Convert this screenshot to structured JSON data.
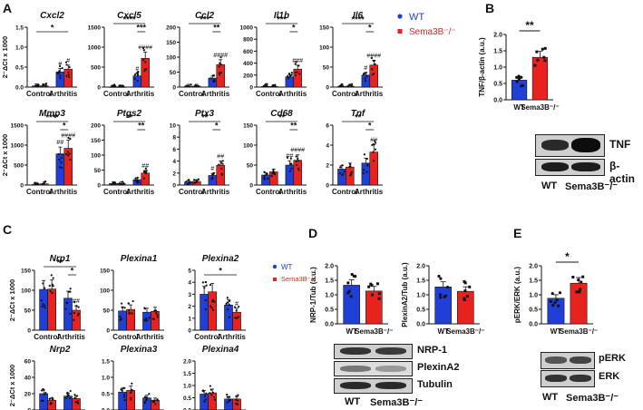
{
  "panels": {
    "A": "A",
    "B": "B",
    "C": "C",
    "D": "D",
    "E": "E"
  },
  "colors": {
    "wt": "#1f3fd6",
    "sema": "#e8231f",
    "wt_label": "#1f3fd6",
    "sema_label": "#e8231f"
  },
  "legend_A": {
    "wt": "WT",
    "sema": "Sema3B⁻/⁻"
  },
  "legend_C": {
    "wt": "WT",
    "sema": "Sema3B⁻/⁻"
  },
  "chart_data": [
    {
      "id": "Cxcl2",
      "type": "bar",
      "title": "Cxcl2",
      "ylabel": "2⁻ΔCt x 1000",
      "categories": [
        "Control",
        "Arthritis"
      ],
      "ylim": [
        0,
        1.5
      ],
      "yticks": [
        "0.0",
        "0.5",
        "1.0",
        "1.5"
      ],
      "series": [
        {
          "name": "WT",
          "values": [
            0.03,
            0.38
          ]
        },
        {
          "name": "Sema3B⁻/⁻",
          "values": [
            0.03,
            0.45
          ]
        }
      ],
      "sig": [
        {
          "text": "*",
          "from": 0,
          "to": 3,
          "level": 1
        }
      ],
      "marks": [
        [
          "",
          ""
        ],
        [
          "#",
          "#"
        ]
      ]
    },
    {
      "id": "Cxcl5",
      "type": "bar",
      "title": "Cxcl5",
      "categories": [
        "Control",
        "Arthritis"
      ],
      "ylim": [
        0,
        1500
      ],
      "yticks": [
        "0",
        "500",
        "1000",
        "1500"
      ],
      "series": [
        {
          "name": "WT",
          "values": [
            5,
            280
          ]
        },
        {
          "name": "Sema3B⁻/⁻",
          "values": [
            5,
            720
          ]
        }
      ],
      "sig": [
        {
          "text": "***",
          "from": 2,
          "to": 3,
          "level": 1
        },
        {
          "text": "****",
          "from": 0,
          "to": 3,
          "level": 2
        }
      ],
      "marks": [
        [
          "",
          ""
        ],
        [
          "#",
          "####"
        ]
      ]
    },
    {
      "id": "Ccl2",
      "type": "bar",
      "title": "Ccl2",
      "categories": [
        "Control",
        "Arthritis"
      ],
      "ylim": [
        0,
        200
      ],
      "yticks": [
        "0",
        "50",
        "100",
        "150",
        "200"
      ],
      "series": [
        {
          "name": "WT",
          "values": [
            3,
            30
          ]
        },
        {
          "name": "Sema3B⁻/⁻",
          "values": [
            3,
            75
          ]
        }
      ],
      "sig": [
        {
          "text": "**",
          "from": 2,
          "to": 3,
          "level": 1
        },
        {
          "text": "***",
          "from": 0,
          "to": 3,
          "level": 2
        }
      ],
      "marks": [
        [
          "",
          ""
        ],
        [
          "",
          "####"
        ]
      ]
    },
    {
      "id": "Il1b",
      "type": "bar",
      "title": "Il1b",
      "categories": [
        "Control",
        "Arthritis"
      ],
      "ylim": [
        0,
        1000
      ],
      "yticks": [
        "0",
        "200",
        "400",
        "600",
        "800",
        "1000"
      ],
      "series": [
        {
          "name": "WT",
          "values": [
            10,
            170
          ]
        },
        {
          "name": "Sema3B⁻/⁻",
          "values": [
            10,
            300
          ]
        }
      ],
      "sig": [
        {
          "text": "*",
          "from": 2,
          "to": 3,
          "level": 1
        },
        {
          "text": "***",
          "from": 0,
          "to": 3,
          "level": 2
        }
      ],
      "marks": [
        [
          "",
          ""
        ],
        [
          "",
          "###"
        ]
      ]
    },
    {
      "id": "Il6",
      "type": "bar",
      "title": "Il6",
      "categories": [
        "Control",
        "Arthritis"
      ],
      "ylim": [
        0,
        150
      ],
      "yticks": [
        "0",
        "50",
        "100",
        "150"
      ],
      "series": [
        {
          "name": "WT",
          "values": [
            2,
            30
          ]
        },
        {
          "name": "Sema3B⁻/⁻",
          "values": [
            2,
            55
          ]
        }
      ],
      "sig": [
        {
          "text": "*",
          "from": 2,
          "to": 3,
          "level": 1
        },
        {
          "text": "****",
          "from": 0,
          "to": 3,
          "level": 2
        }
      ],
      "marks": [
        [
          "",
          ""
        ],
        [
          "#",
          "####"
        ]
      ]
    },
    {
      "id": "Mmp3",
      "type": "bar",
      "title": "Mmp3",
      "ylabel": "2⁻ΔCt x 1000",
      "categories": [
        "Control",
        "Arthritis"
      ],
      "ylim": [
        0,
        1500
      ],
      "yticks": [
        "0",
        "500",
        "1000",
        "1500"
      ],
      "series": [
        {
          "name": "WT",
          "values": [
            20,
            780
          ]
        },
        {
          "name": "Sema3B⁻/⁻",
          "values": [
            30,
            920
          ]
        }
      ],
      "sig": [
        {
          "text": "*",
          "from": 2,
          "to": 3,
          "level": 1
        },
        {
          "text": "****",
          "from": 0,
          "to": 3,
          "level": 2
        }
      ],
      "marks": [
        [
          "",
          ""
        ],
        [
          "##",
          "####"
        ]
      ]
    },
    {
      "id": "Ptgs2",
      "type": "bar",
      "title": "Ptgs2",
      "categories": [
        "Control",
        "Arthritis"
      ],
      "ylim": [
        0,
        200
      ],
      "yticks": [
        "0",
        "50",
        "100",
        "150",
        "200"
      ],
      "series": [
        {
          "name": "WT",
          "values": [
            5,
            18
          ]
        },
        {
          "name": "Sema3B⁻/⁻",
          "values": [
            5,
            40
          ]
        }
      ],
      "sig": [
        {
          "text": "**",
          "from": 2,
          "to": 3,
          "level": 1
        },
        {
          "text": "**",
          "from": 0,
          "to": 3,
          "level": 2
        }
      ],
      "marks": [
        [
          "",
          ""
        ],
        [
          "",
          "##"
        ]
      ]
    },
    {
      "id": "Ptx3",
      "type": "bar",
      "title": "Ptx3",
      "categories": [
        "Control",
        "Arthritis"
      ],
      "ylim": [
        0,
        10
      ],
      "yticks": [
        "0",
        "2",
        "4",
        "6",
        "8",
        "10"
      ],
      "series": [
        {
          "name": "WT",
          "values": [
            0.5,
            1.6
          ]
        },
        {
          "name": "Sema3B⁻/⁻",
          "values": [
            0.6,
            3.3
          ]
        }
      ],
      "sig": [
        {
          "text": "*",
          "from": 2,
          "to": 3,
          "level": 1
        },
        {
          "text": "**",
          "from": 0,
          "to": 3,
          "level": 2
        }
      ],
      "marks": [
        [
          "",
          ""
        ],
        [
          "#",
          "##"
        ]
      ]
    },
    {
      "id": "Cd68",
      "type": "bar",
      "title": "Cd68",
      "categories": [
        "Control",
        "Arthritis"
      ],
      "ylim": [
        0,
        150
      ],
      "yticks": [
        "0",
        "50",
        "100",
        "150"
      ],
      "series": [
        {
          "name": "WT",
          "values": [
            25,
            50
          ]
        },
        {
          "name": "Sema3B⁻/⁻",
          "values": [
            33,
            62
          ]
        }
      ],
      "sig": [
        {
          "text": "**",
          "from": 2,
          "to": 3,
          "level": 1
        },
        {
          "text": "**",
          "from": 0,
          "to": 3,
          "level": 2
        }
      ],
      "marks": [
        [
          "",
          ""
        ],
        [
          "##",
          "####"
        ]
      ]
    },
    {
      "id": "Tnf",
      "type": "bar",
      "title": "Tnf",
      "categories": [
        "Control",
        "Arthritis"
      ],
      "ylim": [
        0,
        6
      ],
      "yticks": [
        "0",
        "2",
        "4",
        "6"
      ],
      "series": [
        {
          "name": "WT",
          "values": [
            1.6,
            2.2
          ]
        },
        {
          "name": "Sema3B⁻/⁻",
          "values": [
            1.8,
            3.3
          ]
        }
      ],
      "sig": [
        {
          "text": "*",
          "from": 2,
          "to": 3,
          "level": 1
        },
        {
          "text": "**",
          "from": 0,
          "to": 3,
          "level": 2
        }
      ],
      "marks": [
        [
          "",
          ""
        ],
        [
          "",
          "##"
        ]
      ]
    },
    {
      "id": "TNFb",
      "type": "bar",
      "title": "",
      "ylabel": "TNF/β-actin (a.u.)",
      "categories": [
        "WT",
        "Sema3B⁻/⁻"
      ],
      "ylim": [
        0,
        2.0
      ],
      "yticks": [
        "0.0",
        "0.5",
        "1.0",
        "1.5",
        "2.0"
      ],
      "series": [
        {
          "name": "Ratio",
          "values": [
            0.6,
            1.3
          ]
        }
      ],
      "sig": [
        {
          "text": "**",
          "from": 0,
          "to": 1,
          "level": 1
        }
      ]
    },
    {
      "id": "Nrp1",
      "type": "bar",
      "title": "Nrp1",
      "ylabel": "2⁻ΔCt x 1000",
      "categories": [
        "Control",
        "Arthritis"
      ],
      "ylim": [
        0,
        150
      ],
      "yticks": [
        "0",
        "50",
        "100",
        "150"
      ],
      "series": [
        {
          "name": "WT",
          "values": [
            102,
            80
          ]
        },
        {
          "name": "Sema3B⁻/⁻",
          "values": [
            103,
            50
          ]
        }
      ],
      "sig": [
        {
          "text": "*",
          "from": 2,
          "to": 3,
          "level": 1
        },
        {
          "text": "**",
          "from": 0,
          "to": 3,
          "level": 2
        }
      ],
      "marks": [
        [
          "",
          ""
        ],
        [
          "",
          "##"
        ]
      ]
    },
    {
      "id": "Plexina1",
      "type": "bar",
      "title": "Plexina1",
      "categories": [
        "Control",
        "Arthritis"
      ],
      "ylim": [
        0,
        150
      ],
      "yticks": [
        "0",
        "50",
        "100",
        "150"
      ],
      "series": [
        {
          "name": "WT",
          "values": [
            48,
            45
          ]
        },
        {
          "name": "Sema3B⁻/⁻",
          "values": [
            52,
            47
          ]
        }
      ],
      "sig": [],
      "marks": [
        [
          "",
          ""
        ],
        [
          "",
          ""
        ]
      ]
    },
    {
      "id": "Plexina2",
      "type": "bar",
      "title": "Plexina2",
      "categories": [
        "Control",
        "Arthritis"
      ],
      "ylim": [
        0,
        5
      ],
      "yticks": [
        "0",
        "1",
        "2",
        "3",
        "4",
        "5"
      ],
      "series": [
        {
          "name": "WT",
          "values": [
            3.0,
            2.1
          ]
        },
        {
          "name": "Sema3B⁻/⁻",
          "values": [
            3.2,
            1.5
          ]
        }
      ],
      "sig": [
        {
          "text": "*",
          "from": 0,
          "to": 3,
          "level": 1
        }
      ],
      "marks": [
        [
          "",
          ""
        ],
        [
          "",
          "#"
        ]
      ]
    },
    {
      "id": "Nrp2",
      "type": "bar",
      "title": "Nrp2",
      "ylabel": "2⁻ΔCt x 1000",
      "categories": [
        "Control",
        "Arthritis"
      ],
      "ylim": [
        0,
        60
      ],
      "yticks": [
        "0",
        "20",
        "40",
        "60"
      ],
      "series": [
        {
          "name": "WT",
          "values": [
            20,
            17
          ]
        },
        {
          "name": "Sema3B⁻/⁻",
          "values": [
            12,
            14
          ]
        }
      ],
      "sig": [],
      "marks": [
        [
          "",
          ""
        ],
        [
          "",
          ""
        ]
      ]
    },
    {
      "id": "Plexina3",
      "type": "bar",
      "title": "Plexina3",
      "categories": [
        "Control",
        "Arthritis"
      ],
      "ylim": [
        0,
        1.5
      ],
      "yticks": [
        "0.0",
        "0.5",
        "1.0",
        "1.5"
      ],
      "series": [
        {
          "name": "WT",
          "values": [
            0.55,
            0.37
          ]
        },
        {
          "name": "Sema3B⁻/⁻",
          "values": [
            0.6,
            0.3
          ]
        }
      ],
      "sig": [],
      "marks": [
        [
          "",
          ""
        ],
        [
          "",
          ""
        ]
      ]
    },
    {
      "id": "Plexina4",
      "type": "bar",
      "title": "Plexina4",
      "categories": [
        "Control",
        "Arthritis"
      ],
      "ylim": [
        0,
        2.0
      ],
      "yticks": [
        "0.0",
        "0.5",
        "1.0",
        "1.5",
        "2.0"
      ],
      "series": [
        {
          "name": "WT",
          "values": [
            0.65,
            0.45
          ]
        },
        {
          "name": "Sema3B⁻/⁻",
          "values": [
            0.7,
            0.45
          ]
        }
      ],
      "sig": [],
      "marks": [
        [
          "",
          ""
        ],
        [
          "",
          ""
        ]
      ]
    },
    {
      "id": "NRP1Tub",
      "type": "bar",
      "title": "",
      "ylabel": "NRP-1/Tub (a.u.)",
      "categories": [
        "WT",
        "Sema3B⁻/⁻"
      ],
      "ylim": [
        0,
        2.0
      ],
      "yticks": [
        "0.0",
        "0.5",
        "1.0",
        "1.5",
        "2.0"
      ],
      "series": [
        {
          "name": "Ratio",
          "values": [
            1.33,
            1.13
          ]
        }
      ],
      "sig": []
    },
    {
      "id": "PlexA2Tub",
      "type": "bar",
      "title": "",
      "ylabel": "PlexinA2/Tub (a.u.)",
      "categories": [
        "WT",
        "Sema3B⁻/⁻"
      ],
      "ylim": [
        0,
        2.0
      ],
      "yticks": [
        "0.0",
        "0.5",
        "1.0",
        "1.5",
        "2.0"
      ],
      "series": [
        {
          "name": "Ratio",
          "values": [
            1.27,
            1.12
          ]
        }
      ],
      "sig": []
    },
    {
      "id": "pERK",
      "type": "bar",
      "title": "",
      "ylabel": "pERK/ERK (a.u.)",
      "categories": [
        "WT",
        "Sema3B⁻/⁻"
      ],
      "ylim": [
        0,
        2.0
      ],
      "yticks": [
        "0.0",
        "0.5",
        "1.0",
        "1.5",
        "2.0"
      ],
      "series": [
        {
          "name": "Ratio",
          "values": [
            0.88,
            1.4
          ]
        }
      ],
      "sig": [
        {
          "text": "*",
          "from": 0,
          "to": 1,
          "level": 1
        }
      ]
    }
  ],
  "blots": {
    "B": {
      "rows": [
        "TNF",
        "β-actin"
      ],
      "lanes": [
        "WT",
        "Sema3B⁻/⁻"
      ]
    },
    "D": {
      "rows": [
        "NRP-1",
        "PlexinA2",
        "Tubulin"
      ],
      "lanes": [
        "WT",
        "Sema3B⁻/⁻"
      ]
    },
    "E": {
      "rows": [
        "pERK",
        "ERK"
      ],
      "lanes": [
        "WT",
        "Sema3B⁻/⁻"
      ]
    }
  }
}
